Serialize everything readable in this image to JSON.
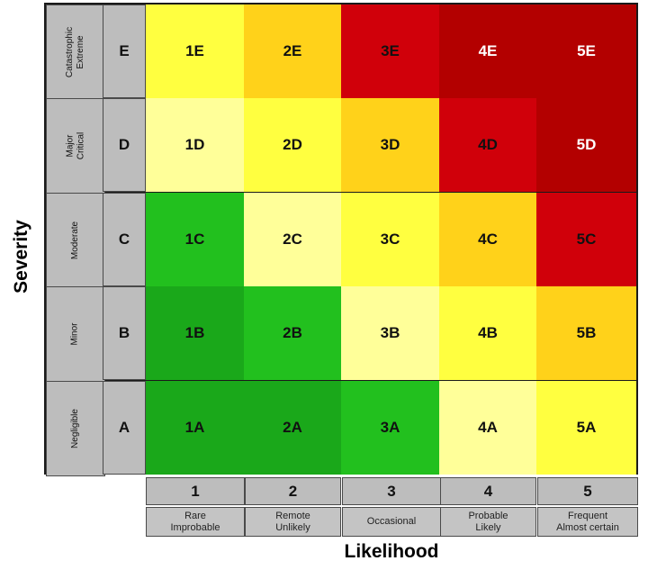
{
  "axes": {
    "y_label": "Severity",
    "x_label": "Likelihood"
  },
  "severity_rows": [
    {
      "letter": "E",
      "name": "Catastrophic\nExtreme"
    },
    {
      "letter": "D",
      "name": "Major\nCritical"
    },
    {
      "letter": "C",
      "name": "Moderate"
    },
    {
      "letter": "B",
      "name": "Minor"
    },
    {
      "letter": "A",
      "name": "Negligible"
    }
  ],
  "likelihood_cols": [
    {
      "number": "1",
      "desc": "Rare\nImprobable"
    },
    {
      "number": "2",
      "desc": "Remote\nUnlikely"
    },
    {
      "number": "3",
      "desc": "Occasional"
    },
    {
      "number": "4",
      "desc": "Probable\nLikely"
    },
    {
      "number": "5",
      "desc": "Frequent\nAlmost certain"
    }
  ],
  "cells": [
    [
      {
        "label": "1E",
        "color": "#ffff40",
        "text": "#111111"
      },
      {
        "label": "2E",
        "color": "#ffd21a",
        "text": "#111111"
      },
      {
        "label": "3E",
        "color": "#d0000a",
        "text": "#111111"
      },
      {
        "label": "4E",
        "color": "#b30000",
        "text": "#ffffff"
      },
      {
        "label": "5E",
        "color": "#b30000",
        "text": "#ffffff"
      }
    ],
    [
      {
        "label": "1D",
        "color": "#ffff99",
        "text": "#111111"
      },
      {
        "label": "2D",
        "color": "#ffff40",
        "text": "#111111"
      },
      {
        "label": "3D",
        "color": "#ffd21a",
        "text": "#111111"
      },
      {
        "label": "4D",
        "color": "#d0000a",
        "text": "#111111"
      },
      {
        "label": "5D",
        "color": "#b30000",
        "text": "#ffffff"
      }
    ],
    [
      {
        "label": "1C",
        "color": "#22c01e",
        "text": "#111111"
      },
      {
        "label": "2C",
        "color": "#ffff99",
        "text": "#111111"
      },
      {
        "label": "3C",
        "color": "#ffff40",
        "text": "#111111"
      },
      {
        "label": "4C",
        "color": "#ffd21a",
        "text": "#111111"
      },
      {
        "label": "5C",
        "color": "#d0000a",
        "text": "#111111"
      }
    ],
    [
      {
        "label": "1B",
        "color": "#1aa81a",
        "text": "#111111"
      },
      {
        "label": "2B",
        "color": "#22c01e",
        "text": "#111111"
      },
      {
        "label": "3B",
        "color": "#ffff99",
        "text": "#111111"
      },
      {
        "label": "4B",
        "color": "#ffff40",
        "text": "#111111"
      },
      {
        "label": "5B",
        "color": "#ffd21a",
        "text": "#111111"
      }
    ],
    [
      {
        "label": "1A",
        "color": "#1aa81a",
        "text": "#111111"
      },
      {
        "label": "2A",
        "color": "#1aa81a",
        "text": "#111111"
      },
      {
        "label": "3A",
        "color": "#22c01e",
        "text": "#111111"
      },
      {
        "label": "4A",
        "color": "#ffff99",
        "text": "#111111"
      },
      {
        "label": "5A",
        "color": "#ffff40",
        "text": "#111111"
      }
    ]
  ]
}
